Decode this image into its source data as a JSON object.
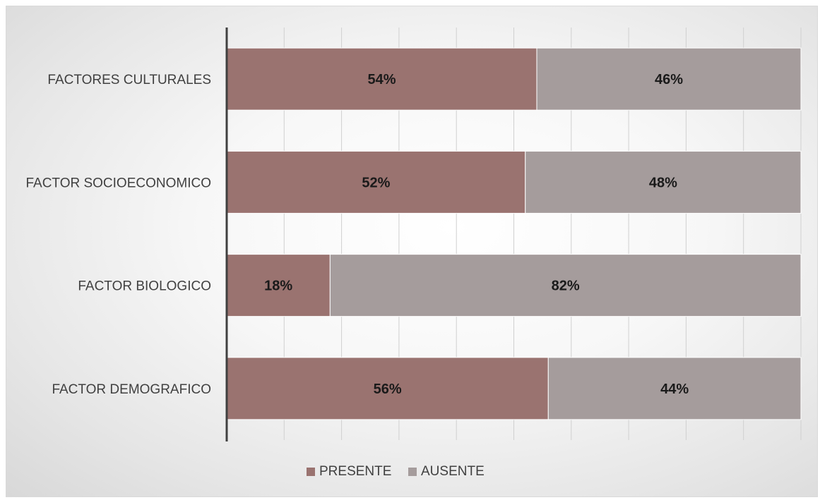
{
  "chart_data": {
    "type": "bar",
    "orientation": "horizontal",
    "stacked": true,
    "categories": [
      "FACTOR DEMOGRAFICO",
      "FACTOR BIOLOGICO",
      "FACTOR SOCIOECONOMICO",
      "FACTORES CULTURALES"
    ],
    "series": [
      {
        "name": "PRESENTE",
        "color": "#9a7370",
        "values": [
          56,
          18,
          52,
          54
        ],
        "labels": [
          "56%",
          "18%",
          "52%",
          "54%"
        ]
      },
      {
        "name": "AUSENTE",
        "color": "#a59c9c",
        "values": [
          44,
          82,
          48,
          46
        ],
        "labels": [
          "44%",
          "82%",
          "48%",
          "46%"
        ]
      }
    ],
    "xlim": [
      0,
      100
    ],
    "grid": true,
    "legend_position": "bottom"
  }
}
